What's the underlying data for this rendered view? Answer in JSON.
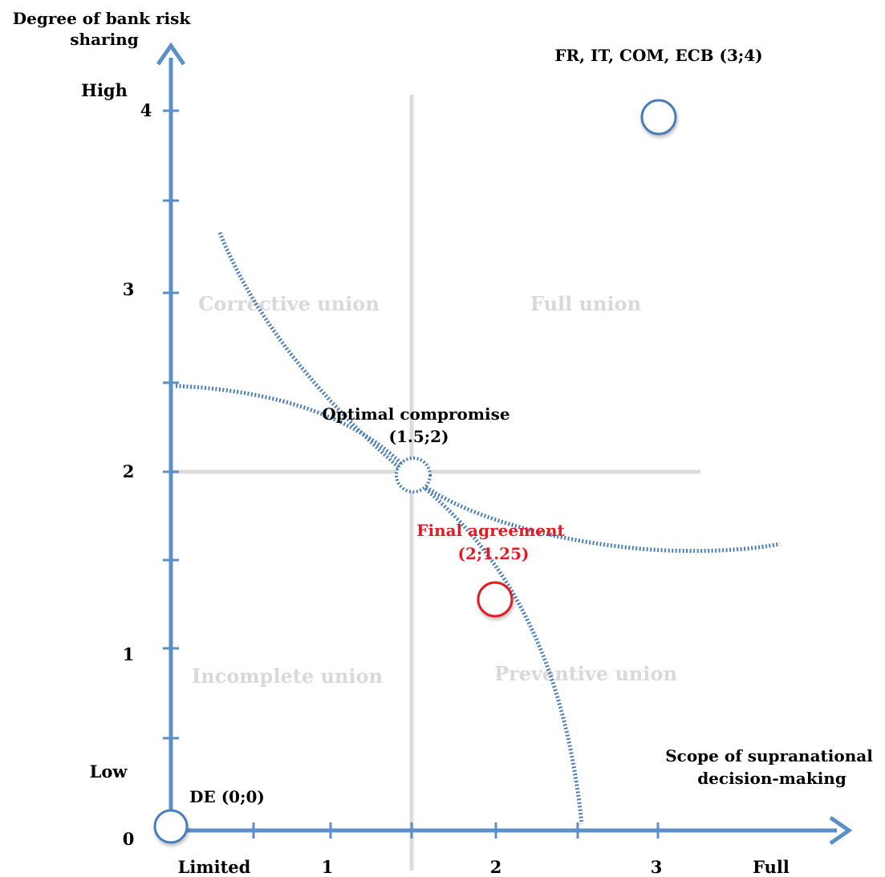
{
  "axes": {
    "y_title": [
      "Degree of bank risk",
      "sharing"
    ],
    "x_title": [
      "Scope of supranational",
      "decision-making"
    ],
    "y_level_labels": {
      "high": "High",
      "low": "Low"
    },
    "x_level_labels": {
      "limited": "Limited",
      "full": "Full"
    },
    "y_ticks": [
      "0",
      "1",
      "2",
      "3",
      "4"
    ],
    "x_ticks": [
      "1",
      "2",
      "3"
    ],
    "color": "#5b8fc8"
  },
  "quadrants": {
    "top_left": "Corrective union",
    "top_right": "Full union",
    "bottom_left": "Incomplete union",
    "bottom_right": "Preventive union"
  },
  "points": {
    "fr_it": {
      "label": "FR, IT, COM, ECB (3;4)",
      "color": "#4a7ebb"
    },
    "de": {
      "label": "DE (0;0)",
      "color": "#4a7ebb"
    },
    "optimal": {
      "label_1": "Optimal compromise",
      "label_2": "(1.5;2)",
      "color": "#4a7ebb",
      "style": "dotted"
    },
    "final": {
      "label_1": "Final agreement",
      "label_2": "(2;1.25)",
      "color": "#e31b23"
    }
  },
  "curves": {
    "color": "#4a7ebb",
    "style": "dotted"
  }
}
